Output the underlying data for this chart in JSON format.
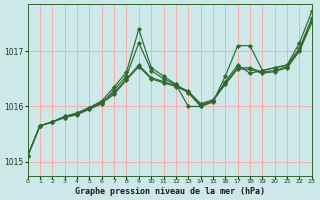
{
  "bg_color": "#cce8e8",
  "plot_bg_color": "#cce8e8",
  "grid_color": "#ff9999",
  "line_color": "#2d6a2d",
  "marker_color": "#2d6a2d",
  "xlabel": "Graphe pression niveau de la mer (hPa)",
  "xlim": [
    0,
    23
  ],
  "ylim": [
    1014.75,
    1017.85
  ],
  "yticks": [
    1015,
    1016,
    1017
  ],
  "xticks": [
    0,
    1,
    2,
    3,
    4,
    5,
    6,
    7,
    8,
    9,
    10,
    11,
    12,
    13,
    14,
    15,
    16,
    17,
    18,
    19,
    20,
    21,
    22,
    23
  ],
  "series": [
    [
      1015.1,
      1015.65,
      1015.72,
      1015.8,
      1015.85,
      1015.95,
      1016.05,
      1016.3,
      1016.55,
      1017.15,
      1016.65,
      1016.5,
      1016.4,
      1016.25,
      1016.0,
      1016.1,
      1016.45,
      1016.75,
      1016.6,
      1016.65,
      1016.7,
      1016.75,
      1017.05,
      1017.6
    ],
    [
      1015.1,
      1015.65,
      1015.72,
      1015.82,
      1015.88,
      1015.98,
      1016.08,
      1016.25,
      1016.5,
      1016.75,
      1016.52,
      1016.45,
      1016.38,
      1016.28,
      1016.05,
      1016.12,
      1016.42,
      1016.7,
      1016.7,
      1016.62,
      1016.65,
      1016.72,
      1017.02,
      1017.55
    ],
    [
      1015.1,
      1015.65,
      1015.72,
      1015.82,
      1015.88,
      1015.98,
      1016.1,
      1016.35,
      1016.62,
      1017.4,
      1016.7,
      1016.55,
      1016.4,
      1016.0,
      1016.0,
      1016.08,
      1016.55,
      1017.1,
      1017.1,
      1016.65,
      1016.7,
      1016.75,
      1017.15,
      1017.72
    ],
    [
      1015.1,
      1015.65,
      1015.72,
      1015.8,
      1015.87,
      1015.96,
      1016.06,
      1016.22,
      1016.48,
      1016.72,
      1016.5,
      1016.43,
      1016.36,
      1016.26,
      1016.03,
      1016.1,
      1016.4,
      1016.68,
      1016.67,
      1016.6,
      1016.63,
      1016.7,
      1017.0,
      1017.52
    ]
  ]
}
